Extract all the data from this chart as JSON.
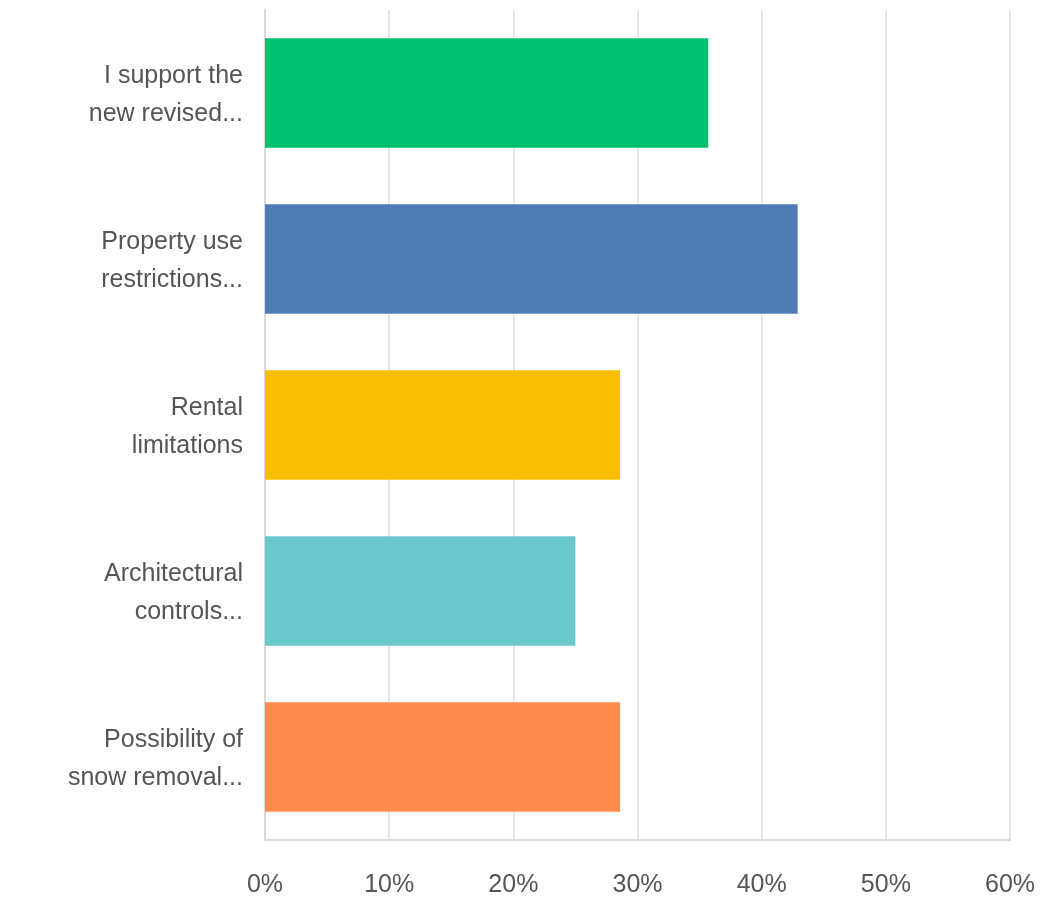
{
  "chart_data": {
    "type": "bar",
    "orientation": "horizontal",
    "categories": [
      "I support the\nnew revised...",
      "Property use\nrestrictions...",
      "Rental\nlimitations",
      "Architectural\ncontrols...",
      "Possibility of\nsnow removal..."
    ],
    "values": [
      35.7,
      42.9,
      28.6,
      25.0,
      28.6
    ],
    "colors": [
      "#00bf6f",
      "#507cb6",
      "#f9be00",
      "#6bc8cd",
      "#ff8b4f"
    ],
    "xlim": [
      0,
      60
    ],
    "xticks": [
      {
        "value": 0,
        "label": "0%"
      },
      {
        "value": 10,
        "label": "10%"
      },
      {
        "value": 20,
        "label": "20%"
      },
      {
        "value": 30,
        "label": "30%"
      },
      {
        "value": 40,
        "label": "40%"
      },
      {
        "value": 50,
        "label": "50%"
      },
      {
        "value": 60,
        "label": "60%"
      }
    ],
    "grid": "x"
  }
}
